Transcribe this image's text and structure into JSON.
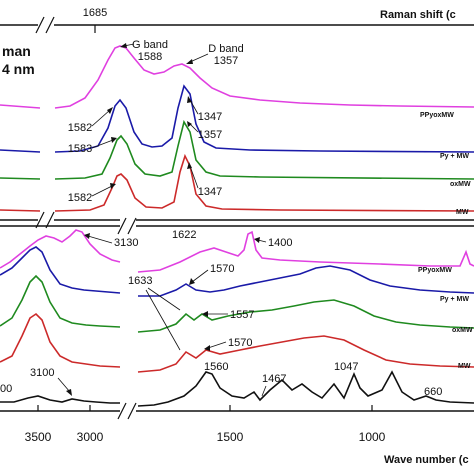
{
  "chart_data": [
    {
      "type": "line",
      "panel": "top",
      "title": "",
      "xlabel": "Raman shift (c",
      "xlabel_position": "top",
      "ylabel": "",
      "legend_text": [
        "man",
        "4 nm"
      ],
      "x_ticks": [
        "1685"
      ],
      "axis_break": true,
      "grid": false,
      "series": [
        {
          "name": "PPyoxMW",
          "color": "#e040e0"
        },
        {
          "name": "Py + MW",
          "color": "#1a1aa8"
        },
        {
          "name": "oxMW",
          "color": "#1f8a1f"
        },
        {
          "name": "MW",
          "color": "#cc2a2a"
        }
      ],
      "annotations": [
        {
          "text": "G band",
          "x": 1588
        },
        {
          "text": "1588",
          "x": 1588
        },
        {
          "text": "D band",
          "x": 1357
        },
        {
          "text": "1357",
          "x": 1357
        },
        {
          "text": "1582",
          "x": 1582
        },
        {
          "text": "1347",
          "x": 1347
        },
        {
          "text": "1583",
          "x": 1583
        },
        {
          "text": "1357",
          "x": 1357
        },
        {
          "text": "1582",
          "x": 1582
        },
        {
          "text": "1347",
          "x": 1347
        }
      ]
    },
    {
      "type": "line",
      "panel": "bottom",
      "title": "",
      "xlabel": "Wave number (c",
      "ylabel": "",
      "x_ticks": [
        "3500",
        "3000",
        "1500",
        "1000"
      ],
      "axis_break": true,
      "grid": false,
      "series": [
        {
          "name": "PPyoxMW",
          "color": "#e040e0"
        },
        {
          "name": "Py + MW",
          "color": "#1a1aa8"
        },
        {
          "name": "oxMW",
          "color": "#1f8a1f"
        },
        {
          "name": "MW",
          "color": "#cc2a2a"
        },
        {
          "name": "",
          "color": "#111111"
        }
      ],
      "annotations": [
        {
          "text": "3130",
          "x": 3130
        },
        {
          "text": "1622",
          "x": 1622
        },
        {
          "text": "1400",
          "x": 1400
        },
        {
          "text": "1570",
          "x": 1570
        },
        {
          "text": "1633",
          "x": 1633
        },
        {
          "text": "1557",
          "x": 1557
        },
        {
          "text": "1570",
          "x": 1570
        },
        {
          "text": "3100",
          "x": 3100
        },
        {
          "text": "00",
          "x": 3450
        },
        {
          "text": "1560",
          "x": 1560
        },
        {
          "text": "1467",
          "x": 1467
        },
        {
          "text": "1047",
          "x": 1047
        },
        {
          "text": "660",
          "x": 660
        }
      ]
    }
  ]
}
